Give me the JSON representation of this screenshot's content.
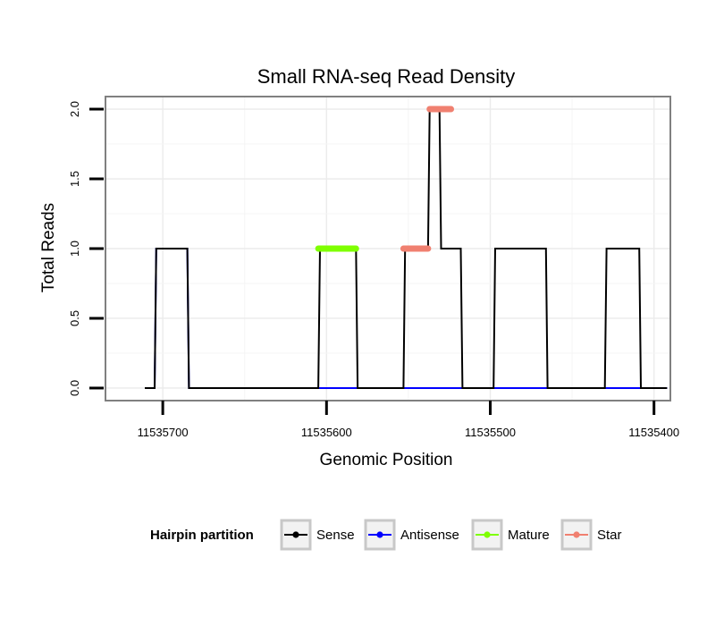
{
  "chart_data": {
    "type": "line",
    "title": "Small RNA-seq Read Density",
    "xlabel": "Genomic Position",
    "ylabel": "Total Reads",
    "xlim": [
      11535735,
      11535390
    ],
    "ylim": [
      -0.09,
      2.09
    ],
    "x_reversed": true,
    "x_ticks": [
      11535700,
      11535600,
      11535500,
      11535400
    ],
    "x_tick_labels": [
      "11535700",
      "11535600",
      "11535500",
      "11535400"
    ],
    "y_ticks": [
      0.0,
      0.5,
      1.0,
      1.5,
      2.0
    ],
    "y_tick_labels": [
      "0.0",
      "0.5",
      "1.0",
      "1.5",
      "2.0"
    ],
    "grid": true,
    "legend": {
      "title": "Hairpin partition",
      "position": "bottom",
      "entries": [
        {
          "name": "Sense",
          "color": "#000000"
        },
        {
          "name": "Antisense",
          "color": "#0000ff"
        },
        {
          "name": "Mature",
          "color": "#7fff00"
        },
        {
          "name": "Star",
          "color": "#f08070"
        }
      ]
    },
    "series": [
      {
        "name": "Sense",
        "color": "#000000",
        "width": 2,
        "x": [
          11535711,
          11535705,
          11535704,
          11535697,
          11535696,
          11535685,
          11535684,
          11535605,
          11535604,
          11535582,
          11535581,
          11535553,
          11535552,
          11535538,
          11535537,
          11535531,
          11535530,
          11535518,
          11535517,
          11535498,
          11535497,
          11535493,
          11535492,
          11535466,
          11535465,
          11535430,
          11535429,
          11535409,
          11535408,
          11535392
        ],
        "values": [
          0,
          0,
          1,
          1,
          1,
          1,
          0,
          0,
          1,
          1,
          0,
          0,
          1,
          1,
          2,
          2,
          1,
          1,
          0,
          0,
          1,
          1,
          1,
          1,
          0,
          0,
          1,
          1,
          0,
          0
        ]
      },
      {
        "name": "Antisense",
        "color": "#0000ff",
        "width": 2,
        "x": [
          11535711,
          11535705,
          11535704,
          11535697,
          11535696,
          11535685,
          11535684,
          11535392
        ],
        "values": [
          0,
          0,
          1,
          1,
          1,
          1,
          0,
          0
        ]
      }
    ],
    "segments": [
      {
        "name": "Mature",
        "color": "#7fff00",
        "x": [
          11535605,
          11535582
        ],
        "y": 1
      },
      {
        "name": "Star",
        "color": "#f08070",
        "x": [
          11535553,
          11535538
        ],
        "y": 1
      },
      {
        "name": "Star",
        "color": "#f08070",
        "x": [
          11535537,
          11535524
        ],
        "y": 2
      }
    ]
  }
}
